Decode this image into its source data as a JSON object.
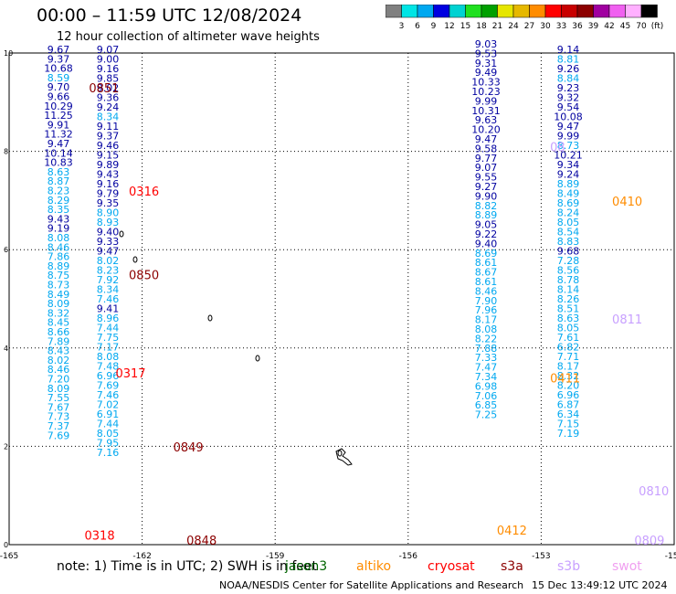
{
  "header": {
    "title": "00:00 – 11:59 UTC 12/08/2024",
    "subtitle": "12 hour collection of altimeter wave heights"
  },
  "colorbar": {
    "colors": [
      "#808080",
      "#00e5e5",
      "#00a8f0",
      "#0000e0",
      "#00d2d2",
      "#20e020",
      "#00a000",
      "#e6e600",
      "#e6b800",
      "#ff8c00",
      "#ff0000",
      "#c80000",
      "#8c0000",
      "#a000a0",
      "#f060f0",
      "#ffb0ff",
      "#000000"
    ],
    "labels": [
      "3",
      "6",
      "9",
      "12",
      "15",
      "18",
      "21",
      "24",
      "27",
      "30",
      "33",
      "36",
      "39",
      "42",
      "45",
      "70",
      "(ft)"
    ]
  },
  "map": {
    "x_ticks": [
      "-165",
      "-162",
      "-159",
      "-156",
      "-153",
      "-150"
    ],
    "y_ticks": [
      "0",
      "2",
      "4",
      "6",
      "8",
      "10"
    ],
    "lon_range": [
      -165,
      -150
    ],
    "lat_range": [
      0,
      10
    ]
  },
  "tracks": [
    {
      "time": "0851",
      "color": "#8c0000",
      "lon": -163.2,
      "lat": 9.2
    },
    {
      "time": "0316",
      "color": "#ff0000",
      "lon": -162.3,
      "lat": 7.1
    },
    {
      "time": "0850",
      "color": "#8c0000",
      "lon": -162.3,
      "lat": 5.4
    },
    {
      "time": "0317",
      "color": "#ff0000",
      "lon": -162.6,
      "lat": 3.4
    },
    {
      "time": "0849",
      "color": "#8c0000",
      "lon": -161.3,
      "lat": 1.9
    },
    {
      "time": "0318",
      "color": "#ff0000",
      "lon": -163.3,
      "lat": 0.1
    },
    {
      "time": "0848",
      "color": "#8c0000",
      "lon": -161.0,
      "lat": 0.0
    },
    {
      "time": "08",
      "color": "#c8a0ff",
      "lon": -152.8,
      "lat": 8.0
    },
    {
      "time": "0410",
      "color": "#ff8c00",
      "lon": -151.4,
      "lat": 6.9
    },
    {
      "time": "0811",
      "color": "#c8a0ff",
      "lon": -151.4,
      "lat": 4.5
    },
    {
      "time": "0411",
      "color": "#ff8c00",
      "lon": -152.8,
      "lat": 3.3
    },
    {
      "time": "0810",
      "color": "#c8a0ff",
      "lon": -150.8,
      "lat": 1.0
    },
    {
      "time": "0412",
      "color": "#ff8c00",
      "lon": -154.0,
      "lat": 0.2
    },
    {
      "time": "0809",
      "color": "#c8a0ff",
      "lon": -150.9,
      "lat": 0.0
    }
  ],
  "columns": [
    {
      "color": "#0000a0",
      "x": 64,
      "top": 58,
      "step": 10.3,
      "values": [
        "9.67",
        "9.37",
        "10.68",
        "8.59",
        "9.70",
        "9.66",
        "10.29",
        "11.25",
        "9.91",
        "11.32",
        "9.47",
        "10.14",
        "10.83",
        "8.63",
        "8.87",
        "8.23",
        "8.29",
        "8.35",
        "9.43",
        "9.19",
        "8.08",
        "8.46",
        "7.86",
        "8.89",
        "8.75",
        "8.73",
        "8.49",
        "8.09",
        "8.32",
        "8.45",
        "8.66",
        "7.89",
        "8.43",
        "8.02",
        "8.46",
        "7.20",
        "8.09",
        "7.55",
        "7.67",
        "7.73",
        "7.37",
        "7.69"
      ]
    },
    {
      "color": "#0000a0",
      "x": 118,
      "top": 58,
      "step": 10.5,
      "values": [
        "9.07",
        "9.00",
        "9.16",
        "9.85",
        "9.02",
        "9.36",
        "9.24",
        "8.34",
        "9.11",
        "9.37",
        "9.46",
        "9.15",
        "9.89",
        "9.43",
        "9.16",
        "9.79",
        "9.35",
        "8.90",
        "8.93",
        "9.40",
        "9.33",
        "9.47",
        "8.02",
        "8.23",
        "7.92",
        "8.34",
        "7.46",
        "9.41",
        "8.96",
        "7.44",
        "7.75",
        "7.17",
        "8.08",
        "7.48",
        "6.96",
        "7.69",
        "7.46",
        "7.02",
        "6.91",
        "7.44",
        "8.05",
        "7.95",
        "7.16"
      ]
    },
    {
      "color": "#0000a0",
      "x": 532,
      "top": 52,
      "step": 10.4,
      "values": [
        "9.03",
        "9.53",
        "9.31",
        "9.49",
        "10.33",
        "10.23",
        "9.99",
        "10.31",
        "9.63",
        "10.20",
        "9.47",
        "9.58",
        "9.77",
        "9.07",
        "9.55",
        "9.27",
        "9.90",
        "8.82",
        "8.89",
        "9.05",
        "9.22",
        "9.40",
        "8.69",
        "8.61",
        "8.67",
        "8.61",
        "8.46",
        "7.90",
        "7.96",
        "8.17",
        "8.08",
        "8.22",
        "7.88",
        "7.33",
        "7.47",
        "7.34",
        "6.98",
        "7.06",
        "6.85",
        "7.25"
      ]
    },
    {
      "color": "#0000a0",
      "x": 622,
      "top": 58,
      "step": 10.5,
      "values": [
        "9.14",
        "8.81",
        "9.26",
        "8.84",
        "9.23",
        "9.32",
        "9.54",
        "10.08",
        "9.47",
        "9.99",
        "8.73",
        "10.21",
        "9.34",
        "9.24",
        "8.89",
        "8.49",
        "8.69",
        "8.24",
        "8.05",
        "8.54",
        "8.83",
        "9.68",
        "7.28",
        "8.56",
        "8.78",
        "8.14",
        "8.26",
        "8.51",
        "8.63",
        "8.05",
        "7.61",
        "6.82",
        "7.71",
        "8.17",
        "8.32",
        "8.20",
        "6.96",
        "6.87",
        "6.34",
        "7.15",
        "7.19"
      ]
    }
  ],
  "footer": {
    "note": "note: 1) Time is in UTC; 2) SWH is in feet",
    "credit": "NOAA/NESDIS Center for Satellite Applications and Research",
    "date": "15 Dec 13:49:12 UTC 2024",
    "satellites": [
      {
        "name": "jason3",
        "color": "#006400"
      },
      {
        "name": "altiko",
        "color": "#ff8c00"
      },
      {
        "name": "cryosat",
        "color": "#ff0000"
      },
      {
        "name": "s3a",
        "color": "#8c0000"
      },
      {
        "name": "s3b",
        "color": "#c8a0ff"
      },
      {
        "name": "swot",
        "color": "#f0a0f0"
      }
    ]
  }
}
